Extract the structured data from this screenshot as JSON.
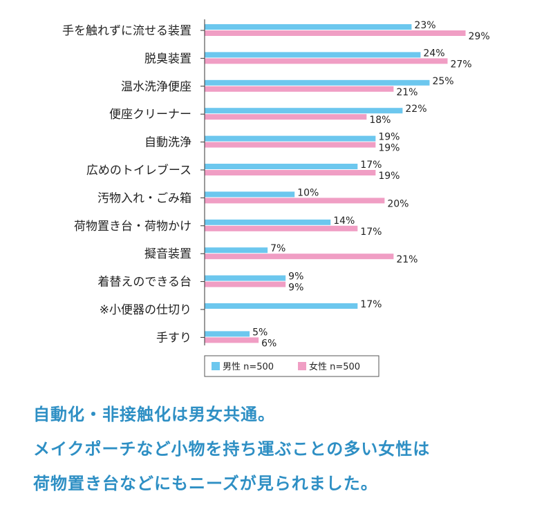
{
  "chart_data": {
    "type": "bar",
    "orientation": "horizontal",
    "categories": [
      "手を触れずに流せる装置",
      "脱臭装置",
      "温水洗浄便座",
      "便座クリーナー",
      "自動洗浄",
      "広めのトイレブース",
      "汚物入れ・ごみ箱",
      "荷物置き台・荷物かけ",
      "擬音装置",
      "着替えのできる台",
      "※小便器の仕切り",
      "手すり"
    ],
    "series": [
      {
        "name": "男性 n=500",
        "color": "#6cc7ee",
        "values": [
          23,
          24,
          25,
          22,
          19,
          17,
          10,
          14,
          7,
          9,
          17,
          5
        ]
      },
      {
        "name": "女性 n=500",
        "color": "#f09ec4",
        "values": [
          29,
          27,
          21,
          18,
          19,
          19,
          20,
          17,
          21,
          9,
          null,
          6
        ]
      }
    ],
    "value_suffix": "%",
    "xlim": [
      0,
      30
    ],
    "legend_position": "bottom"
  },
  "caption": {
    "line1": "自動化・非接触化は男女共通。",
    "line2": "メイクポーチなど小物を持ち運ぶことの多い女性は",
    "line3": "荷物置き台などにもニーズが見られました。"
  }
}
